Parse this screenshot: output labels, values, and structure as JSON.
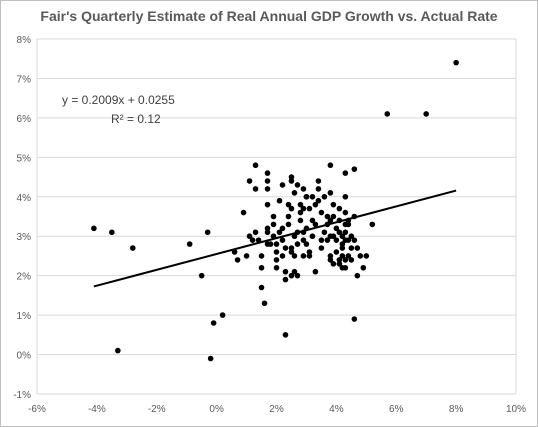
{
  "chart_data": {
    "type": "scatter",
    "title": "Fair's Quarterly Estimate of Real Annual GDP Growth vs. Actual Rate",
    "xlabel": "",
    "ylabel": "",
    "xlim": [
      -0.06,
      0.1
    ],
    "ylim": [
      -0.01,
      0.08
    ],
    "x_ticks": [
      -0.06,
      -0.04,
      -0.02,
      0.0,
      0.02,
      0.04,
      0.06,
      0.08,
      0.1
    ],
    "x_tick_labels": [
      "-6%",
      "-4%",
      "-2%",
      "0%",
      "2%",
      "4%",
      "6%",
      "8%",
      "10%"
    ],
    "y_ticks": [
      -0.01,
      0.0,
      0.01,
      0.02,
      0.03,
      0.04,
      0.05,
      0.06,
      0.07,
      0.08
    ],
    "y_tick_labels": [
      "-1%",
      "0%",
      "1%",
      "2%",
      "3%",
      "4%",
      "5%",
      "6%",
      "7%",
      "8%"
    ],
    "grid": "horizontal",
    "trendline": {
      "type": "linear",
      "slope": 0.2009,
      "intercept": 0.0255,
      "x_range": [
        -0.041,
        0.08
      ],
      "equation_label": "y = 0.2009x + 0.0255",
      "r2_label": "R² = 0.12"
    },
    "points": [
      [
        -0.041,
        0.032
      ],
      [
        -0.035,
        0.031
      ],
      [
        -0.033,
        0.001
      ],
      [
        -0.028,
        0.027
      ],
      [
        -0.009,
        0.028
      ],
      [
        -0.005,
        0.02
      ],
      [
        -0.003,
        0.031
      ],
      [
        -0.002,
        -0.001
      ],
      [
        -0.001,
        0.008
      ],
      [
        0.002,
        0.01
      ],
      [
        0.006,
        0.026
      ],
      [
        0.007,
        0.024
      ],
      [
        0.009,
        0.036
      ],
      [
        0.01,
        0.025
      ],
      [
        0.011,
        0.044
      ],
      [
        0.011,
        0.03
      ],
      [
        0.012,
        0.029
      ],
      [
        0.013,
        0.031
      ],
      [
        0.013,
        0.042
      ],
      [
        0.013,
        0.048
      ],
      [
        0.014,
        0.029
      ],
      [
        0.015,
        0.022
      ],
      [
        0.015,
        0.025
      ],
      [
        0.015,
        0.017
      ],
      [
        0.016,
        0.013
      ],
      [
        0.017,
        0.032
      ],
      [
        0.017,
        0.031
      ],
      [
        0.017,
        0.028
      ],
      [
        0.017,
        0.044
      ],
      [
        0.017,
        0.042
      ],
      [
        0.017,
        0.046
      ],
      [
        0.017,
        0.038
      ],
      [
        0.018,
        0.028
      ],
      [
        0.019,
        0.033
      ],
      [
        0.019,
        0.03
      ],
      [
        0.019,
        0.035
      ],
      [
        0.02,
        0.028
      ],
      [
        0.02,
        0.026
      ],
      [
        0.02,
        0.024
      ],
      [
        0.02,
        0.022
      ],
      [
        0.021,
        0.031
      ],
      [
        0.021,
        0.039
      ],
      [
        0.022,
        0.043
      ],
      [
        0.022,
        0.032
      ],
      [
        0.022,
        0.029
      ],
      [
        0.022,
        0.025
      ],
      [
        0.023,
        0.019
      ],
      [
        0.023,
        0.005
      ],
      [
        0.023,
        0.027
      ],
      [
        0.023,
        0.021
      ],
      [
        0.024,
        0.033
      ],
      [
        0.024,
        0.038
      ],
      [
        0.024,
        0.035
      ],
      [
        0.025,
        0.045
      ],
      [
        0.025,
        0.044
      ],
      [
        0.025,
        0.037
      ],
      [
        0.025,
        0.026
      ],
      [
        0.025,
        0.02
      ],
      [
        0.025,
        0.027
      ],
      [
        0.026,
        0.03
      ],
      [
        0.026,
        0.025
      ],
      [
        0.026,
        0.041
      ],
      [
        0.026,
        0.021
      ],
      [
        0.027,
        0.028
      ],
      [
        0.027,
        0.031
      ],
      [
        0.027,
        0.02
      ],
      [
        0.027,
        0.043
      ],
      [
        0.028,
        0.034
      ],
      [
        0.028,
        0.036
      ],
      [
        0.028,
        0.038
      ],
      [
        0.029,
        0.025
      ],
      [
        0.029,
        0.031
      ],
      [
        0.029,
        0.029
      ],
      [
        0.029,
        0.037
      ],
      [
        0.029,
        0.042
      ],
      [
        0.03,
        0.04
      ],
      [
        0.03,
        0.04
      ],
      [
        0.03,
        0.032
      ],
      [
        0.03,
        0.028
      ],
      [
        0.031,
        0.026
      ],
      [
        0.031,
        0.037
      ],
      [
        0.031,
        0.025
      ],
      [
        0.032,
        0.04
      ],
      [
        0.032,
        0.034
      ],
      [
        0.032,
        0.03
      ],
      [
        0.033,
        0.033
      ],
      [
        0.033,
        0.021
      ],
      [
        0.033,
        0.038
      ],
      [
        0.034,
        0.039
      ],
      [
        0.034,
        0.042
      ],
      [
        0.034,
        0.044
      ],
      [
        0.035,
        0.036
      ],
      [
        0.035,
        0.029
      ],
      [
        0.035,
        0.027
      ],
      [
        0.036,
        0.04
      ],
      [
        0.036,
        0.031
      ],
      [
        0.037,
        0.035
      ],
      [
        0.037,
        0.029
      ],
      [
        0.037,
        0.033
      ],
      [
        0.038,
        0.034
      ],
      [
        0.038,
        0.041
      ],
      [
        0.038,
        0.048
      ],
      [
        0.038,
        0.03
      ],
      [
        0.038,
        0.025
      ],
      [
        0.038,
        0.024
      ],
      [
        0.039,
        0.035
      ],
      [
        0.039,
        0.038
      ],
      [
        0.039,
        0.03
      ],
      [
        0.039,
        0.023
      ],
      [
        0.04,
        0.026
      ],
      [
        0.04,
        0.029
      ],
      [
        0.04,
        0.032
      ],
      [
        0.041,
        0.037
      ],
      [
        0.041,
        0.034
      ],
      [
        0.041,
        0.031
      ],
      [
        0.041,
        0.024
      ],
      [
        0.041,
        0.023
      ],
      [
        0.042,
        0.03
      ],
      [
        0.042,
        0.028
      ],
      [
        0.042,
        0.027
      ],
      [
        0.042,
        0.025
      ],
      [
        0.042,
        0.022
      ],
      [
        0.043,
        0.033
      ],
      [
        0.043,
        0.046
      ],
      [
        0.043,
        0.04
      ],
      [
        0.043,
        0.036
      ],
      [
        0.043,
        0.031
      ],
      [
        0.043,
        0.029
      ],
      [
        0.043,
        0.024
      ],
      [
        0.043,
        0.022
      ],
      [
        0.044,
        0.034
      ],
      [
        0.044,
        0.025
      ],
      [
        0.044,
        0.033
      ],
      [
        0.044,
        0.029
      ],
      [
        0.045,
        0.03
      ],
      [
        0.045,
        0.027
      ],
      [
        0.045,
        0.024
      ],
      [
        0.046,
        0.047
      ],
      [
        0.046,
        0.035
      ],
      [
        0.046,
        0.009
      ],
      [
        0.046,
        0.029
      ],
      [
        0.047,
        0.027
      ],
      [
        0.047,
        0.02
      ],
      [
        0.048,
        0.025
      ],
      [
        0.049,
        0.022
      ],
      [
        0.05,
        0.025
      ],
      [
        0.052,
        0.033
      ],
      [
        0.057,
        0.061
      ],
      [
        0.07,
        0.061
      ],
      [
        0.08,
        0.074
      ]
    ]
  }
}
